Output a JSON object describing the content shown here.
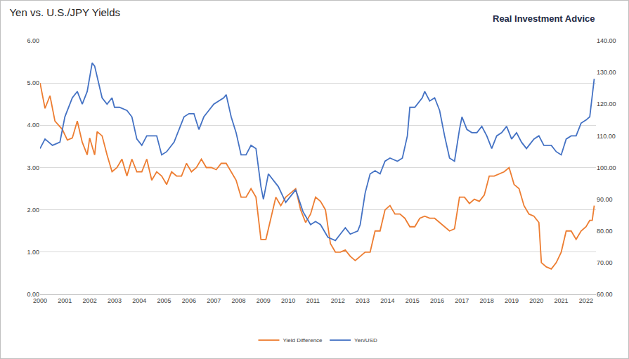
{
  "chart_data": {
    "type": "line",
    "title": "Yen vs. U.S./JPY Yields",
    "annotations": [
      "Real Investment Advice"
    ],
    "grid": true,
    "legend": "bottom",
    "xlim": [
      2000,
      2022.4
    ],
    "xticks": [
      2000,
      2001,
      2002,
      2003,
      2004,
      2005,
      2006,
      2007,
      2008,
      2009,
      2010,
      2011,
      2012,
      2013,
      2014,
      2015,
      2016,
      2017,
      2018,
      2019,
      2020,
      2021,
      2022
    ],
    "ylim": [
      0,
      6
    ],
    "yticks": [
      {
        "value": 0,
        "label": "0.00"
      },
      {
        "value": 1,
        "label": "1.00"
      },
      {
        "value": 2,
        "label": "2.00"
      },
      {
        "value": 3,
        "label": "3.00"
      },
      {
        "value": 4,
        "label": "4.00"
      },
      {
        "value": 5,
        "label": "5.00"
      },
      {
        "value": 6,
        "label": "6.00"
      }
    ],
    "y2lim": [
      60,
      140
    ],
    "y2ticks": [
      {
        "value": 60,
        "label": "60.00"
      },
      {
        "value": 70,
        "label": "70.00"
      },
      {
        "value": 80,
        "label": "80.00"
      },
      {
        "value": 90,
        "label": "90.00"
      },
      {
        "value": 100,
        "label": "100.00"
      },
      {
        "value": 110,
        "label": "110.00"
      },
      {
        "value": 120,
        "label": "120.00"
      },
      {
        "value": 130,
        "label": "130.00"
      },
      {
        "value": 140,
        "label": "140.00"
      }
    ],
    "series": [
      {
        "name": "Yield Difference",
        "color": "#ED7D31",
        "x": [
          2000.0,
          2000.2,
          2000.4,
          2000.6,
          2000.9,
          2001.1,
          2001.3,
          2001.5,
          2001.7,
          2001.9,
          2002.0,
          2002.2,
          2002.3,
          2002.5,
          2002.7,
          2002.9,
          2003.1,
          2003.3,
          2003.5,
          2003.7,
          2003.9,
          2004.1,
          2004.3,
          2004.5,
          2004.7,
          2004.9,
          2005.1,
          2005.3,
          2005.5,
          2005.7,
          2005.9,
          2006.1,
          2006.3,
          2006.5,
          2006.7,
          2006.9,
          2007.1,
          2007.3,
          2007.5,
          2007.7,
          2007.9,
          2008.1,
          2008.3,
          2008.5,
          2008.7,
          2008.9,
          2009.1,
          2009.3,
          2009.5,
          2009.7,
          2009.9,
          2010.1,
          2010.3,
          2010.5,
          2010.7,
          2010.9,
          2011.1,
          2011.3,
          2011.5,
          2011.7,
          2011.9,
          2012.1,
          2012.3,
          2012.5,
          2012.7,
          2012.9,
          2013.1,
          2013.3,
          2013.5,
          2013.7,
          2013.9,
          2014.1,
          2014.3,
          2014.5,
          2014.7,
          2014.9,
          2015.1,
          2015.3,
          2015.5,
          2015.7,
          2015.9,
          2016.1,
          2016.3,
          2016.5,
          2016.7,
          2016.9,
          2017.1,
          2017.3,
          2017.5,
          2017.7,
          2017.9,
          2018.1,
          2018.3,
          2018.5,
          2018.7,
          2018.9,
          2019.1,
          2019.3,
          2019.5,
          2019.7,
          2019.9,
          2020.1,
          2020.2,
          2020.4,
          2020.6,
          2020.8,
          2021.0,
          2021.2,
          2021.4,
          2021.6,
          2021.8,
          2022.0,
          2022.15,
          2022.25,
          2022.33
        ],
        "values": [
          5.0,
          4.4,
          4.7,
          4.1,
          3.9,
          3.65,
          3.7,
          4.1,
          3.6,
          3.3,
          3.7,
          3.3,
          3.85,
          3.75,
          3.3,
          2.9,
          3.0,
          3.2,
          2.8,
          3.2,
          2.9,
          2.9,
          3.2,
          2.7,
          2.9,
          2.8,
          2.6,
          2.9,
          2.8,
          2.8,
          3.1,
          2.9,
          3.0,
          3.2,
          3.0,
          3.0,
          2.95,
          3.1,
          3.1,
          2.9,
          2.7,
          2.3,
          2.3,
          2.5,
          2.3,
          1.3,
          1.3,
          1.8,
          2.3,
          2.1,
          2.3,
          2.4,
          2.5,
          2.0,
          1.7,
          1.9,
          2.3,
          2.2,
          2.0,
          1.2,
          1.0,
          1.0,
          1.05,
          0.9,
          0.8,
          0.9,
          1.0,
          1.0,
          1.5,
          1.5,
          2.0,
          2.1,
          1.9,
          1.9,
          1.8,
          1.6,
          1.6,
          1.8,
          1.85,
          1.8,
          1.8,
          1.7,
          1.6,
          1.5,
          1.55,
          2.3,
          2.3,
          2.15,
          2.25,
          2.2,
          2.35,
          2.8,
          2.8,
          2.85,
          2.9,
          3.0,
          2.6,
          2.5,
          2.1,
          1.9,
          1.85,
          1.7,
          0.75,
          0.65,
          0.6,
          0.75,
          1.0,
          1.5,
          1.5,
          1.3,
          1.5,
          1.6,
          1.75,
          1.75,
          2.1
        ]
      },
      {
        "name": "Yen/USD",
        "color": "#4472C4",
        "axis": "y2",
        "x": [
          2000.0,
          2000.2,
          2000.5,
          2000.8,
          2001.0,
          2001.3,
          2001.5,
          2001.7,
          2001.9,
          2002.1,
          2002.2,
          2002.5,
          2002.7,
          2002.9,
          2003.0,
          2003.2,
          2003.5,
          2003.7,
          2003.9,
          2004.1,
          2004.3,
          2004.5,
          2004.7,
          2004.9,
          2005.1,
          2005.4,
          2005.6,
          2005.8,
          2006.0,
          2006.2,
          2006.4,
          2006.6,
          2006.8,
          2007.0,
          2007.4,
          2007.5,
          2007.7,
          2007.9,
          2008.1,
          2008.3,
          2008.5,
          2008.7,
          2008.9,
          2009.0,
          2009.2,
          2009.4,
          2009.6,
          2009.9,
          2010.1,
          2010.3,
          2010.6,
          2010.9,
          2011.1,
          2011.3,
          2011.6,
          2011.9,
          2012.1,
          2012.3,
          2012.5,
          2012.8,
          2012.9,
          2013.1,
          2013.3,
          2013.5,
          2013.7,
          2013.9,
          2014.1,
          2014.4,
          2014.6,
          2014.8,
          2014.9,
          2015.1,
          2015.4,
          2015.5,
          2015.7,
          2015.9,
          2016.1,
          2016.3,
          2016.5,
          2016.7,
          2016.9,
          2017.0,
          2017.2,
          2017.4,
          2017.6,
          2017.8,
          2018.0,
          2018.2,
          2018.4,
          2018.6,
          2018.8,
          2019.0,
          2019.2,
          2019.4,
          2019.6,
          2019.9,
          2020.1,
          2020.3,
          2020.6,
          2020.8,
          2021.0,
          2021.2,
          2021.4,
          2021.6,
          2021.8,
          2022.0,
          2022.15,
          2022.25,
          2022.33
        ],
        "values": [
          106,
          109,
          107,
          108,
          116,
          122,
          124,
          120,
          124,
          133,
          132,
          122,
          120,
          122,
          119,
          119,
          118,
          116,
          109,
          107,
          110,
          110,
          110,
          104,
          105,
          108,
          112,
          116,
          117,
          117,
          112,
          116,
          118,
          120,
          122,
          123,
          116,
          111,
          104,
          104,
          107,
          106,
          94,
          90,
          98,
          96,
          94,
          89,
          91,
          93,
          86,
          82,
          83,
          82,
          78,
          77,
          79,
          81,
          79,
          80,
          82,
          92,
          98,
          99,
          98,
          102,
          103,
          102,
          103,
          110,
          119,
          119,
          122,
          124,
          121,
          122,
          118,
          110,
          103,
          102,
          112,
          116,
          112,
          111,
          111,
          113,
          110,
          106,
          110,
          111,
          113,
          109,
          111,
          108,
          106,
          109,
          110,
          107,
          107,
          105,
          104,
          109,
          110,
          110,
          114,
          115,
          116,
          122,
          128
        ]
      }
    ]
  }
}
